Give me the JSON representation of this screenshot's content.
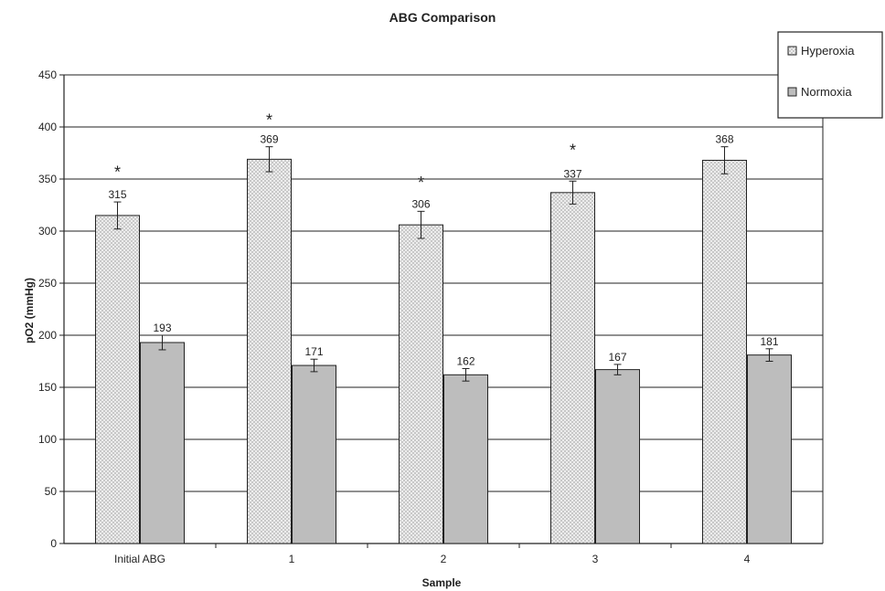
{
  "chart_data": {
    "type": "bar",
    "title": "ABG Comparison",
    "xlabel": "Sample",
    "ylabel": "pO2 (mmHg)",
    "categories": [
      "Initial ABG",
      "1",
      "2",
      "3",
      "4"
    ],
    "ylim": [
      0,
      450
    ],
    "yticks": [
      0,
      50,
      100,
      150,
      200,
      250,
      300,
      350,
      400,
      450
    ],
    "grid": true,
    "legend_position": "top-right",
    "series": [
      {
        "name": "Hyperoxia",
        "values": [
          315,
          369,
          306,
          337,
          368
        ],
        "errors": [
          13,
          12,
          13,
          11,
          13
        ],
        "color": "#d9d9d9",
        "pattern": "crosshatch"
      },
      {
        "name": "Normoxia",
        "values": [
          193,
          171,
          162,
          167,
          181
        ],
        "errors": [
          7,
          6,
          6,
          5,
          6
        ],
        "color": "#bdbdbd",
        "pattern": "solid"
      }
    ],
    "data_labels": {
      "Hyperoxia": [
        "315",
        "369",
        "306",
        "337",
        "368"
      ],
      "Normoxia": [
        "193",
        "171",
        "162",
        "167",
        "181"
      ]
    },
    "annotations": [
      {
        "text": "*",
        "category": "Initial ABG",
        "y": 360
      },
      {
        "text": "*",
        "category": "1",
        "y": 410
      },
      {
        "text": "*",
        "category": "2",
        "y": 350
      },
      {
        "text": "*",
        "category": "3",
        "y": 381
      }
    ]
  }
}
